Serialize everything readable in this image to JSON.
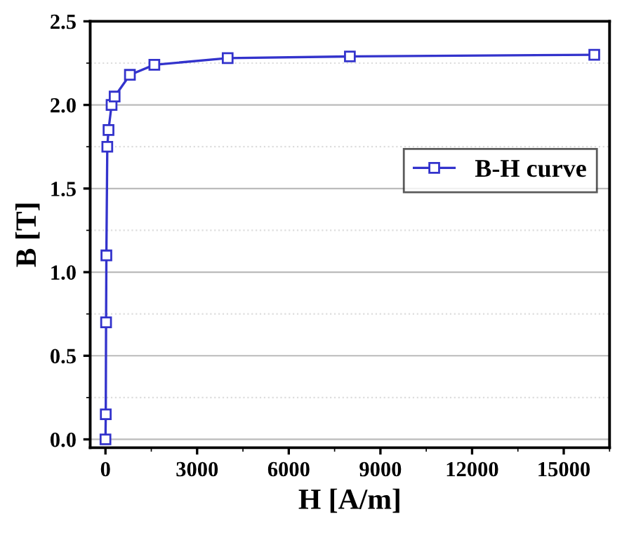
{
  "chart_data": {
    "type": "line",
    "xlabel": "H [A/m]",
    "ylabel": "B [T]",
    "series": [
      {
        "name": "B-H curve",
        "color": "#3333cc",
        "x": [
          0,
          10,
          20,
          30,
          60,
          100,
          200,
          300,
          800,
          1600,
          4000,
          8000,
          16000
        ],
        "values": [
          0,
          0.15,
          0.7,
          1.1,
          1.75,
          1.85,
          2.0,
          2.05,
          2.18,
          2.24,
          2.28,
          2.29,
          2.3
        ]
      }
    ],
    "xlim": [
      -500,
      16500
    ],
    "ylim": [
      -0.05,
      2.5
    ],
    "xticks": [
      0,
      3000,
      6000,
      9000,
      12000,
      15000
    ],
    "yticks": [
      {
        "value": 0,
        "label": "0.0"
      },
      0.5,
      {
        "value": 1,
        "label": "1.0"
      },
      1.5,
      {
        "value": 2,
        "label": "2.0"
      },
      2.5
    ],
    "grid": "y",
    "legend": "right",
    "marker": "square",
    "line_style": "solid"
  }
}
